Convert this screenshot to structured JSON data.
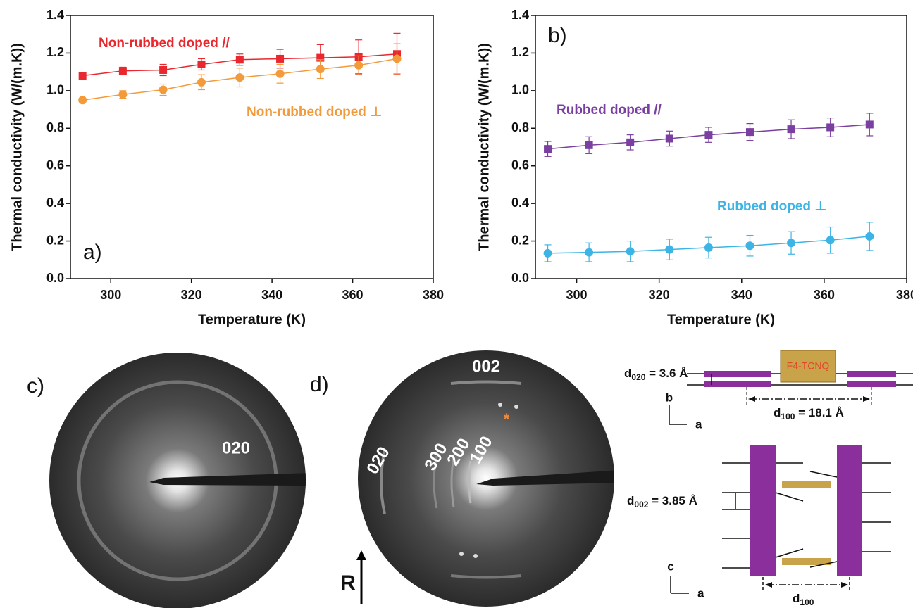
{
  "chart_data": [
    {
      "type": "line",
      "panel_label": "a)",
      "x_label": "Temperature (K)",
      "y_label": "Thermal conductivity (W/(m.K))",
      "x": [
        293,
        303,
        313,
        322.5,
        332,
        342,
        352,
        361.5,
        371
      ],
      "xlim": [
        290,
        380
      ],
      "xticks": [
        300,
        320,
        340,
        360,
        380
      ],
      "ylim": [
        0,
        1.4
      ],
      "yticks": [
        {
          "value": 0,
          "label": "0.0"
        },
        0.2,
        0.4,
        0.6,
        0.8,
        {
          "value": 1,
          "label": "1.0"
        },
        1.2,
        1.4
      ],
      "series": [
        {
          "name": "Non-rubbed doped //",
          "color": "#e8282e",
          "marker": "square",
          "values": [
            1.08,
            1.105,
            1.11,
            1.14,
            1.165,
            1.17,
            1.175,
            1.18,
            1.195
          ],
          "errors": [
            0.01,
            0.02,
            0.03,
            0.03,
            0.03,
            0.05,
            0.07,
            0.09,
            0.11
          ]
        },
        {
          "name": "Non-rubbed doped ⊥",
          "color": "#f39a3a",
          "marker": "circle",
          "values": [
            0.95,
            0.98,
            1.005,
            1.045,
            1.07,
            1.09,
            1.115,
            1.135,
            1.17
          ],
          "errors": [
            0.01,
            0.02,
            0.03,
            0.04,
            0.05,
            0.05,
            0.05,
            0.05,
            0.08
          ]
        }
      ]
    },
    {
      "type": "line",
      "panel_label": "b)",
      "x_label": "Temperature (K)",
      "y_label": "Thermal conductivity (W/(m.K))",
      "x": [
        293,
        303,
        313,
        322.5,
        332,
        342,
        352,
        361.5,
        371
      ],
      "xlim": [
        290,
        380
      ],
      "xticks": [
        300,
        320,
        340,
        360,
        380
      ],
      "ylim": [
        0,
        1.4
      ],
      "yticks": [
        {
          "value": 0,
          "label": "0.0"
        },
        0.2,
        0.4,
        0.6,
        0.8,
        {
          "value": 1,
          "label": "1.0"
        },
        1.2,
        1.4
      ],
      "series": [
        {
          "name": "Rubbed doped //",
          "color": "#7a3fa0",
          "marker": "square",
          "values": [
            0.69,
            0.71,
            0.725,
            0.745,
            0.765,
            0.78,
            0.795,
            0.805,
            0.82
          ],
          "errors": [
            0.04,
            0.045,
            0.04,
            0.04,
            0.04,
            0.045,
            0.05,
            0.05,
            0.06
          ]
        },
        {
          "name": "Rubbed doped ⊥",
          "color": "#3cb4e6",
          "marker": "circle",
          "values": [
            0.135,
            0.14,
            0.145,
            0.155,
            0.165,
            0.175,
            0.19,
            0.205,
            0.225
          ],
          "errors": [
            0.045,
            0.05,
            0.055,
            0.055,
            0.055,
            0.055,
            0.06,
            0.07,
            0.075
          ]
        }
      ]
    }
  ],
  "panel_c": {
    "label": "c)",
    "ring_label": "020"
  },
  "panel_d": {
    "label": "d)",
    "labels": [
      "002",
      "020",
      "300",
      "200",
      "100"
    ],
    "star": "*",
    "arrow_label": "R"
  },
  "schematic": {
    "top": {
      "d020": {
        "symbol": "d",
        "subscript": "020",
        "rest": " = 3.6 Å"
      },
      "molecule": "F4-TCNQ",
      "axis_v": "b",
      "axis_h": "a",
      "d100": {
        "symbol": "d",
        "subscript": "100",
        "rest": " = 18.1 Å"
      }
    },
    "bottom": {
      "d002": {
        "symbol": "d",
        "subscript": "002",
        "rest": " = 3.85 Å"
      },
      "axis_v": "c",
      "axis_h": "a",
      "d100": {
        "symbol": "d",
        "subscript": "100"
      }
    }
  }
}
